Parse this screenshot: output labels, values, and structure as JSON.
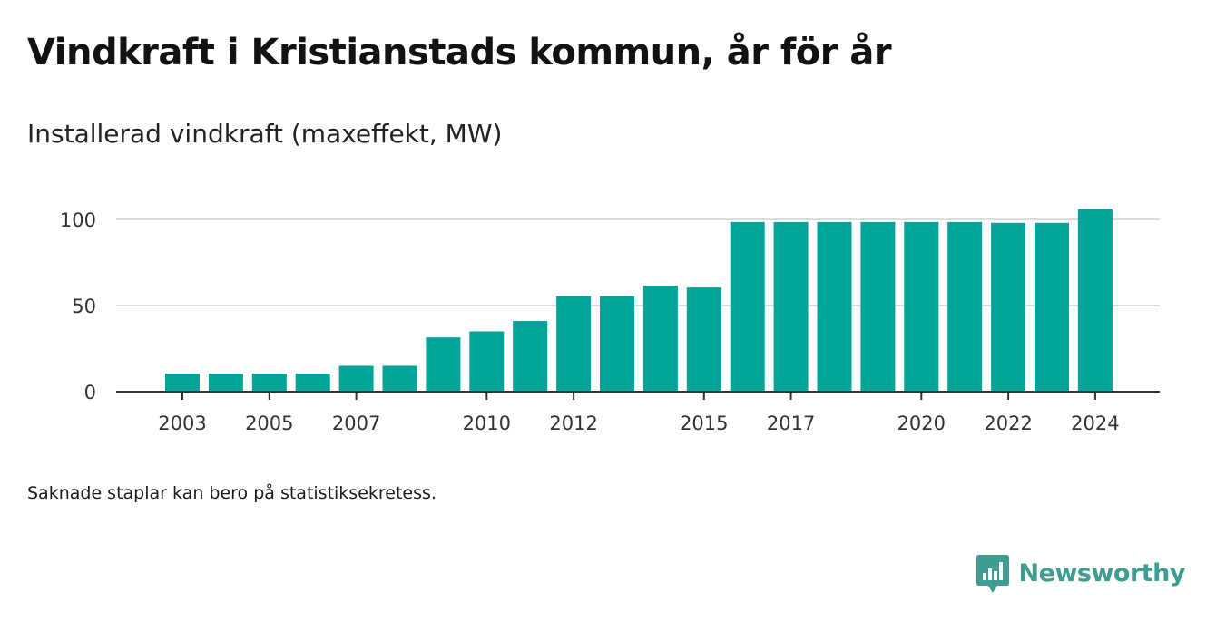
{
  "header": {
    "title": "Vindkraft i Kristianstads kommun, år för år",
    "subtitle": "Installerad vindkraft (maxeffekt, MW)"
  },
  "footer": {
    "note": "Saknade staplar kan bero på statistiksekretess.",
    "brand": "Newsworthy",
    "brand_icon": "newsworthy-logo-icon"
  },
  "colors": {
    "bar": "#00a499",
    "brand": "#3f9c90",
    "grid": "#dddddd",
    "axis": "#333333"
  },
  "chart_data": {
    "type": "bar",
    "title": "Installerad vindkraft (maxeffekt, MW)",
    "xlabel": "",
    "ylabel": "",
    "categories": [
      "2003",
      "2004",
      "2005",
      "2006",
      "2007",
      "2008",
      "2009",
      "2010",
      "2011",
      "2012",
      "2013",
      "2014",
      "2015",
      "2016",
      "2017",
      "2018",
      "2019",
      "2020",
      "2021",
      "2022",
      "2023",
      "2024"
    ],
    "values": [
      10.5,
      10.5,
      10.5,
      10.5,
      15,
      15,
      31.5,
      35,
      41,
      55.5,
      55.5,
      61.5,
      60.5,
      98.5,
      98.5,
      98.5,
      98.5,
      98.5,
      98.5,
      98,
      98,
      106
    ],
    "x_tick_labels": [
      "2003",
      "2005",
      "2007",
      "2010",
      "2012",
      "2015",
      "2017",
      "2020",
      "2022",
      "2024"
    ],
    "y_ticks": [
      0,
      50,
      100
    ],
    "ylim": [
      0,
      110
    ],
    "grid": true,
    "legend": "none"
  }
}
